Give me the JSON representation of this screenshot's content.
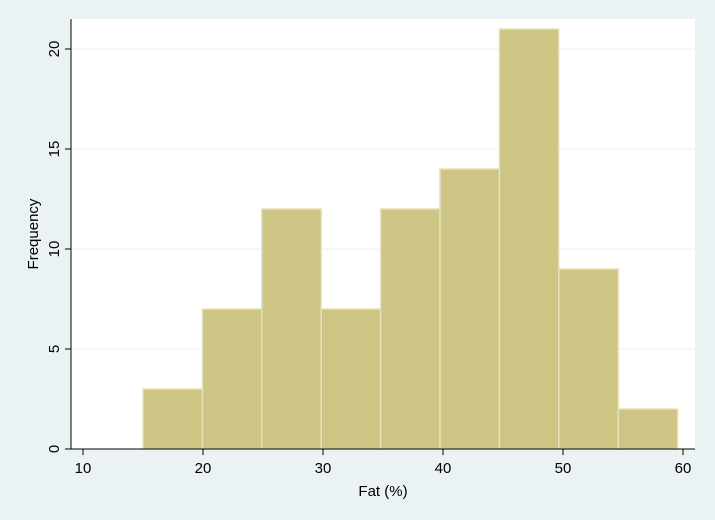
{
  "chart_data": {
    "type": "bar",
    "subtype": "histogram",
    "xlabel": "Fat (%)",
    "ylabel": "Frequency",
    "xlim": [
      9,
      61
    ],
    "ylim": [
      0,
      21.5
    ],
    "x_ticks": [
      10,
      20,
      30,
      40,
      50,
      60
    ],
    "y_ticks": [
      0,
      5,
      10,
      15,
      20
    ],
    "grid": "horizontal",
    "bins": [
      {
        "x0": 15.0,
        "x1": 19.95,
        "count": 3
      },
      {
        "x0": 19.95,
        "x1": 24.9,
        "count": 7
      },
      {
        "x0": 24.9,
        "x1": 29.85,
        "count": 12
      },
      {
        "x0": 29.85,
        "x1": 34.8,
        "count": 7
      },
      {
        "x0": 34.8,
        "x1": 39.75,
        "count": 12
      },
      {
        "x0": 39.75,
        "x1": 44.7,
        "count": 14
      },
      {
        "x0": 44.7,
        "x1": 49.65,
        "count": 21
      },
      {
        "x0": 49.65,
        "x1": 54.6,
        "count": 9
      },
      {
        "x0": 54.6,
        "x1": 59.55,
        "count": 2
      }
    ],
    "colors": {
      "background": "#eaf2f3",
      "plot_background": "#ffffff",
      "bar_fill": "#cdc584",
      "bar_stroke": "#e5e1bc",
      "grid": "#eaf2f3",
      "axis": "#000000"
    }
  }
}
